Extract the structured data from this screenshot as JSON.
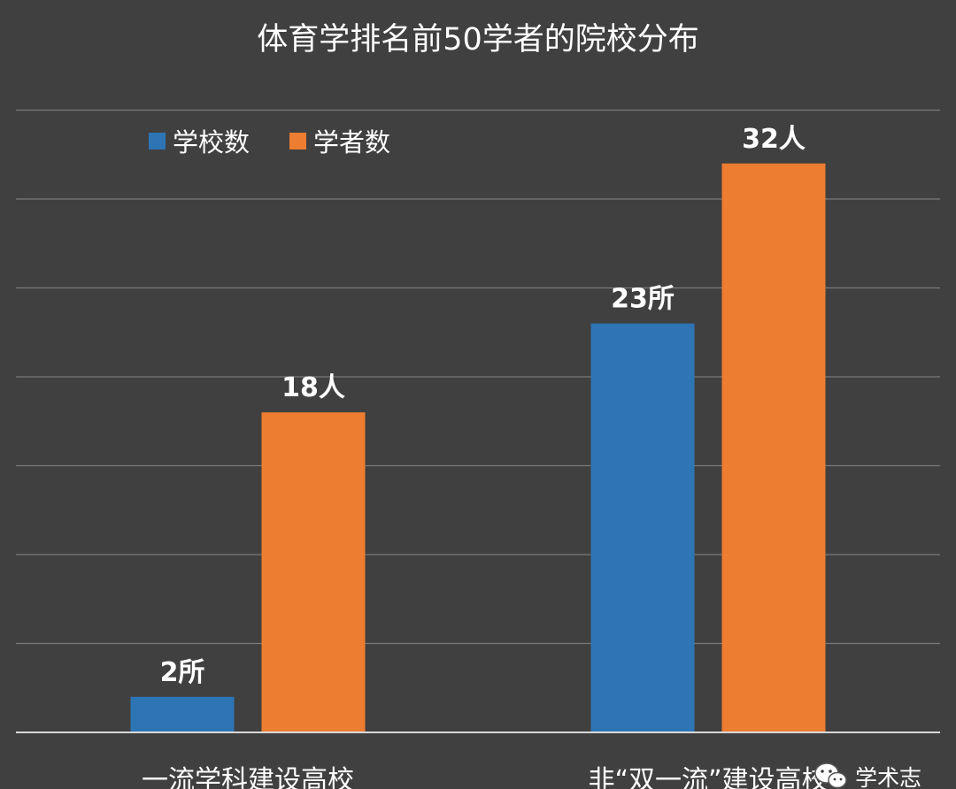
{
  "chart_data": {
    "type": "bar",
    "title": "体育学排名前50学者的院校分布",
    "categories": [
      "一流学科建设高校",
      "非“双一流”建设高校"
    ],
    "series": [
      {
        "name": "学校数",
        "color": "#2e75b6",
        "values": [
          2,
          23
        ],
        "labels": [
          "2所",
          "23所"
        ]
      },
      {
        "name": "学者数",
        "color": "#ed7d31",
        "values": [
          18,
          32
        ],
        "labels": [
          "18人",
          "32人"
        ]
      }
    ],
    "ylim": [
      0,
      35
    ],
    "grid": true,
    "legend": "top-left",
    "xlabel": "",
    "ylabel": ""
  },
  "watermark": {
    "text": "学术志",
    "icon": "wechat-icon"
  }
}
